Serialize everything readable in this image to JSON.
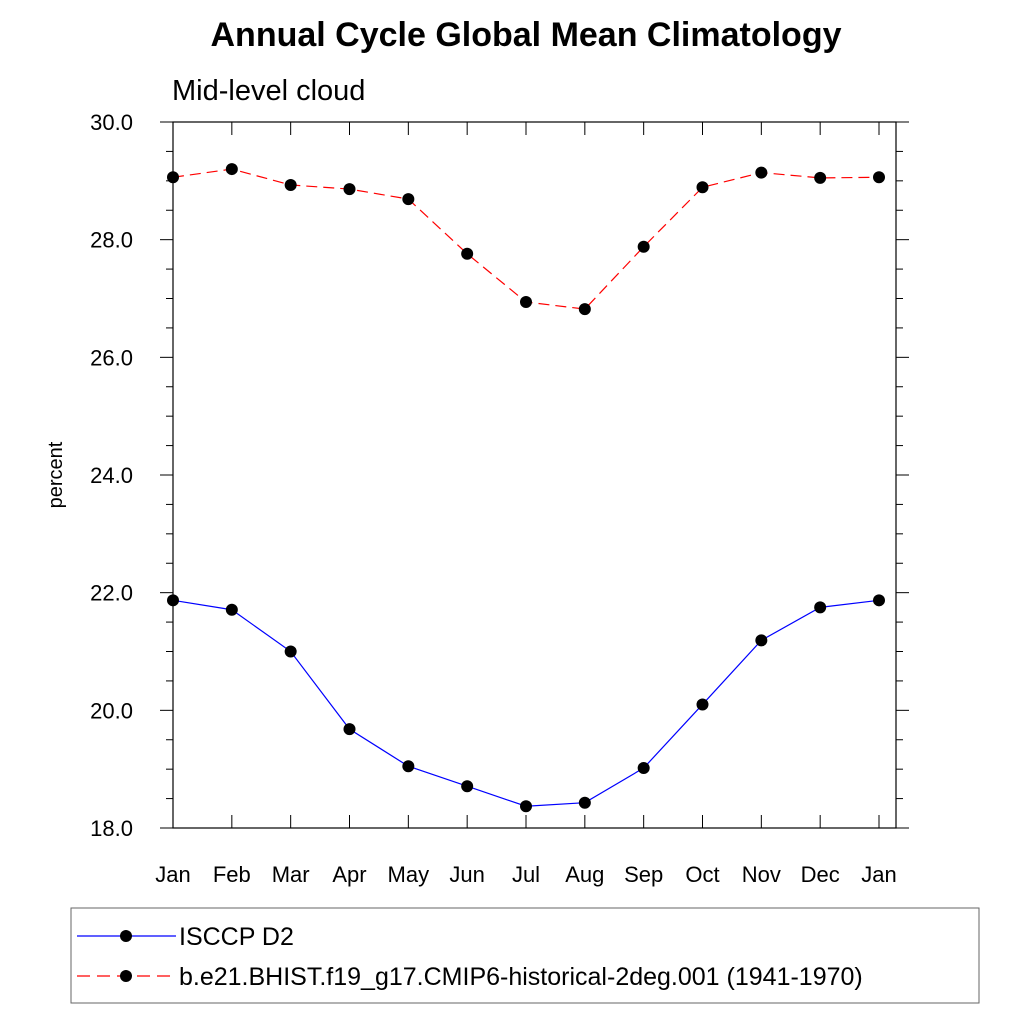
{
  "chart_data": {
    "type": "line",
    "title": "Annual Cycle Global Mean Climatology",
    "subtitle": "Mid-level cloud",
    "ylabel": "percent",
    "xlabel": "",
    "ylim": [
      18.0,
      30.0
    ],
    "yticks": [
      "18.0",
      "20.0",
      "22.0",
      "24.0",
      "26.0",
      "28.0",
      "30.0"
    ],
    "categories": [
      "Jan",
      "Feb",
      "Mar",
      "Apr",
      "May",
      "Jun",
      "Jul",
      "Aug",
      "Sep",
      "Oct",
      "Nov",
      "Dec",
      "Jan"
    ],
    "grid": false,
    "legend_position": "bottom",
    "series": [
      {
        "name": "ISCCP D2",
        "color": "#0000ff",
        "line_style": "solid",
        "marker": "filled-circle",
        "values": [
          21.87,
          21.71,
          21.0,
          19.68,
          19.05,
          18.71,
          18.37,
          18.43,
          19.02,
          20.1,
          21.19,
          21.75,
          21.87
        ]
      },
      {
        "name": "b.e21.BHIST.f19_g17.CMIP6-historical-2deg.001 (1941-1970)",
        "color": "#ff0000",
        "line_style": "dashed",
        "marker": "filled-circle",
        "values": [
          29.06,
          29.2,
          28.93,
          28.86,
          28.69,
          27.76,
          26.94,
          26.82,
          27.88,
          28.89,
          29.14,
          29.05,
          29.06
        ]
      }
    ]
  }
}
